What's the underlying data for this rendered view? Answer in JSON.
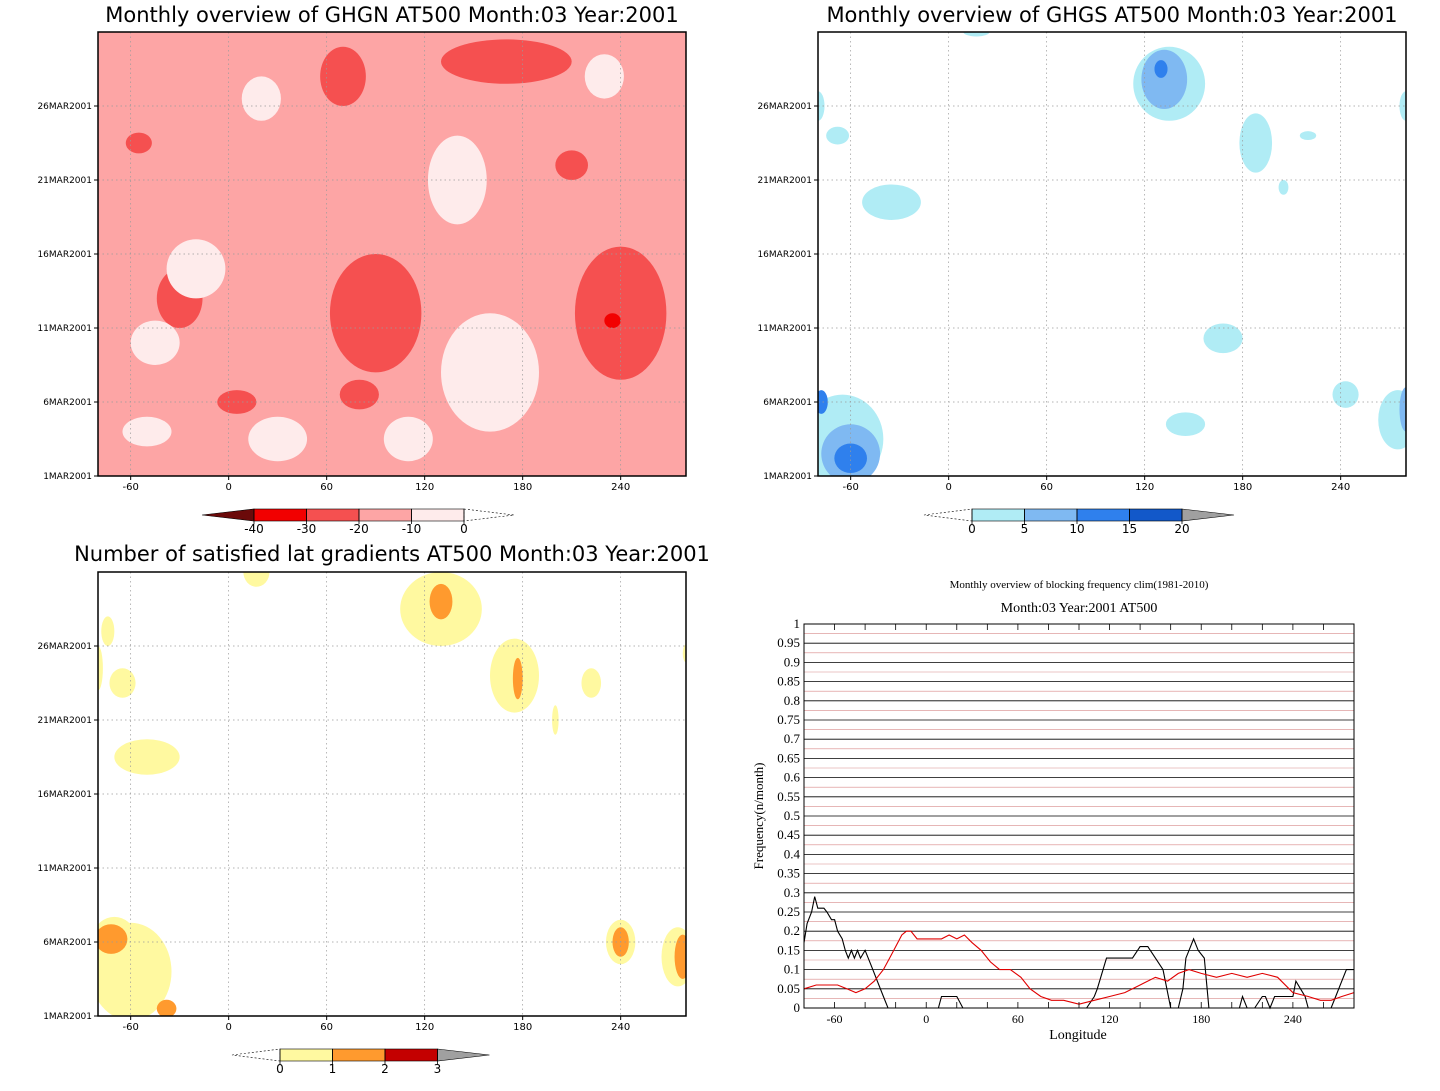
{
  "panels": [
    {
      "id": "ghgn",
      "title": "Monthly overview of GHGN AT500 Month:03 Year:2001",
      "type": "filled-contour",
      "x_ticks": [
        "-60",
        "0",
        "60",
        "120",
        "180",
        "240"
      ],
      "x_tick_values": [
        -60,
        0,
        60,
        120,
        180,
        240
      ],
      "xlim": [
        -80,
        280
      ],
      "y_ticks": [
        "1MAR2001",
        "6MAR2001",
        "11MAR2001",
        "16MAR2001",
        "21MAR2001",
        "26MAR2001"
      ],
      "y_tick_values": [
        1,
        6,
        11,
        16,
        21,
        26
      ],
      "ylim": [
        1,
        31
      ],
      "background_color": "#fda5a5",
      "colorbar": {
        "labels": [
          "-40",
          "-30",
          "-20",
          "-10",
          "0"
        ],
        "colors": [
          "#6b0a0a",
          "#f20000",
          "#f55050",
          "#fda5a5",
          "#feebeb"
        ],
        "open_end": "right"
      },
      "blobs": [
        {
          "c": "#f55050",
          "x": 90,
          "y": 12,
          "rx": 28,
          "ry": 4
        },
        {
          "c": "#f55050",
          "x": -30,
          "y": 13,
          "rx": 14,
          "ry": 2
        },
        {
          "c": "#f55050",
          "x": 240,
          "y": 12,
          "rx": 28,
          "ry": 4.5
        },
        {
          "c": "#f55050",
          "x": 70,
          "y": 28,
          "rx": 14,
          "ry": 2
        },
        {
          "c": "#f55050",
          "x": 170,
          "y": 29,
          "rx": 40,
          "ry": 1.5
        },
        {
          "c": "#f55050",
          "x": -55,
          "y": 23.5,
          "rx": 8,
          "ry": 0.7
        },
        {
          "c": "#f55050",
          "x": 210,
          "y": 22,
          "rx": 10,
          "ry": 1
        },
        {
          "c": "#f55050",
          "x": 5,
          "y": 6,
          "rx": 12,
          "ry": 0.8
        },
        {
          "c": "#f55050",
          "x": 80,
          "y": 6.5,
          "rx": 12,
          "ry": 1
        },
        {
          "c": "#f20000",
          "x": 235,
          "y": 11.5,
          "rx": 5,
          "ry": 0.5
        },
        {
          "c": "#feebeb",
          "x": 160,
          "y": 8,
          "rx": 30,
          "ry": 4
        },
        {
          "c": "#feebeb",
          "x": 140,
          "y": 21,
          "rx": 18,
          "ry": 3
        },
        {
          "c": "#feebeb",
          "x": -20,
          "y": 15,
          "rx": 18,
          "ry": 2
        },
        {
          "c": "#feebeb",
          "x": -45,
          "y": 10,
          "rx": 15,
          "ry": 1.5
        },
        {
          "c": "#feebeb",
          "x": 20,
          "y": 26.5,
          "rx": 12,
          "ry": 1.5
        },
        {
          "c": "#feebeb",
          "x": -50,
          "y": 4,
          "rx": 15,
          "ry": 1
        },
        {
          "c": "#feebeb",
          "x": 30,
          "y": 3.5,
          "rx": 18,
          "ry": 1.5
        },
        {
          "c": "#feebeb",
          "x": 110,
          "y": 3.5,
          "rx": 15,
          "ry": 1.5
        },
        {
          "c": "#feebeb",
          "x": 230,
          "y": 28,
          "rx": 12,
          "ry": 1.5
        }
      ]
    },
    {
      "id": "ghgs",
      "title": "Monthly overview of GHGS AT500 Month:03 Year:2001",
      "type": "filled-contour",
      "x_ticks": [
        "-60",
        "0",
        "60",
        "120",
        "180",
        "240"
      ],
      "x_tick_values": [
        -60,
        0,
        60,
        120,
        180,
        240
      ],
      "xlim": [
        -80,
        280
      ],
      "y_ticks": [
        "1MAR2001",
        "6MAR2001",
        "11MAR2001",
        "16MAR2001",
        "21MAR2001",
        "26MAR2001"
      ],
      "y_tick_values": [
        1,
        6,
        11,
        16,
        21,
        26
      ],
      "ylim": [
        1,
        31
      ],
      "background_color": "#ffffff",
      "colorbar": {
        "labels": [
          "0",
          "5",
          "10",
          "15",
          "20"
        ],
        "colors": [
          "#b0ecf5",
          "#7fb9f2",
          "#2f80ed",
          "#1258c9",
          "#a0a0a0"
        ],
        "open_end": "left"
      },
      "blobs": [
        {
          "c": "#b0ecf5",
          "x": 135,
          "y": 27.5,
          "rx": 22,
          "ry": 2.5
        },
        {
          "c": "#7fb9f2",
          "x": 132,
          "y": 27.8,
          "rx": 14,
          "ry": 2
        },
        {
          "c": "#2f80ed",
          "x": 130,
          "y": 28.5,
          "rx": 4,
          "ry": 0.6
        },
        {
          "c": "#b0ecf5",
          "x": 188,
          "y": 23.5,
          "rx": 10,
          "ry": 2
        },
        {
          "c": "#b0ecf5",
          "x": -35,
          "y": 19.5,
          "rx": 18,
          "ry": 1.2
        },
        {
          "c": "#b0ecf5",
          "x": -68,
          "y": 24,
          "rx": 7,
          "ry": 0.6
        },
        {
          "c": "#b0ecf5",
          "x": 168,
          "y": 10.3,
          "rx": 12,
          "ry": 1
        },
        {
          "c": "#b0ecf5",
          "x": -65,
          "y": 3.5,
          "rx": 25,
          "ry": 3
        },
        {
          "c": "#7fb9f2",
          "x": -60,
          "y": 2.5,
          "rx": 18,
          "ry": 2
        },
        {
          "c": "#2f80ed",
          "x": -60,
          "y": 2.2,
          "rx": 10,
          "ry": 1
        },
        {
          "c": "#2f80ed",
          "x": -78,
          "y": 6,
          "rx": 4,
          "ry": 0.8
        },
        {
          "c": "#b0ecf5",
          "x": 145,
          "y": 4.5,
          "rx": 12,
          "ry": 0.8
        },
        {
          "c": "#b0ecf5",
          "x": 243,
          "y": 6.5,
          "rx": 8,
          "ry": 0.9
        },
        {
          "c": "#b0ecf5",
          "x": 275,
          "y": 4.8,
          "rx": 12,
          "ry": 2
        },
        {
          "c": "#7fb9f2",
          "x": 280,
          "y": 5.5,
          "rx": 4,
          "ry": 1.5
        },
        {
          "c": "#b0ecf5",
          "x": 17,
          "y": 31,
          "rx": 8,
          "ry": 0.3
        },
        {
          "c": "#b0ecf5",
          "x": -80,
          "y": 26,
          "rx": 4,
          "ry": 1
        },
        {
          "c": "#b0ecf5",
          "x": 280,
          "y": 26,
          "rx": 4,
          "ry": 1
        },
        {
          "c": "#b0ecf5",
          "x": 220,
          "y": 24,
          "rx": 5,
          "ry": 0.3
        },
        {
          "c": "#b0ecf5",
          "x": 205,
          "y": 20.5,
          "rx": 3,
          "ry": 0.5
        }
      ]
    },
    {
      "id": "latgrad",
      "title": "Number of satisfied lat gradients AT500 Month:03 Year:2001",
      "type": "filled-contour",
      "x_ticks": [
        "-60",
        "0",
        "60",
        "120",
        "180",
        "240"
      ],
      "x_tick_values": [
        -60,
        0,
        60,
        120,
        180,
        240
      ],
      "xlim": [
        -80,
        280
      ],
      "y_ticks": [
        "1MAR2001",
        "6MAR2001",
        "11MAR2001",
        "16MAR2001",
        "21MAR2001",
        "26MAR2001"
      ],
      "y_tick_values": [
        1,
        6,
        11,
        16,
        21,
        26
      ],
      "ylim": [
        1,
        31
      ],
      "background_color": "#ffffff",
      "colorbar": {
        "labels": [
          "0",
          "1",
          "2",
          "3"
        ],
        "colors": [
          "#fff9a0",
          "#ff9a2e",
          "#c40000",
          "#a0a0a0"
        ],
        "open_end": "left"
      },
      "blobs": [
        {
          "c": "#fff9a0",
          "x": 17,
          "y": 31,
          "rx": 8,
          "ry": 1
        },
        {
          "c": "#fff9a0",
          "x": 130,
          "y": 28.5,
          "rx": 25,
          "ry": 2.5
        },
        {
          "c": "#ff9a2e",
          "x": 130,
          "y": 29,
          "rx": 7,
          "ry": 1.2
        },
        {
          "c": "#fff9a0",
          "x": 175,
          "y": 24,
          "rx": 15,
          "ry": 2.5
        },
        {
          "c": "#ff9a2e",
          "x": 177,
          "y": 23.8,
          "rx": 3,
          "ry": 1.4
        },
        {
          "c": "#fff9a0",
          "x": 222,
          "y": 23.5,
          "rx": 6,
          "ry": 1
        },
        {
          "c": "#fff9a0",
          "x": -65,
          "y": 23.5,
          "rx": 8,
          "ry": 1
        },
        {
          "c": "#fff9a0",
          "x": -80,
          "y": 24.5,
          "rx": 3,
          "ry": 1.5
        },
        {
          "c": "#fff9a0",
          "x": -74,
          "y": 27,
          "rx": 4,
          "ry": 1
        },
        {
          "c": "#fff9a0",
          "x": -50,
          "y": 18.5,
          "rx": 20,
          "ry": 1.2
        },
        {
          "c": "#fff9a0",
          "x": 200,
          "y": 21,
          "rx": 2,
          "ry": 1
        },
        {
          "c": "#fff9a0",
          "x": -60,
          "y": 4,
          "rx": 25,
          "ry": 3.3
        },
        {
          "c": "#fff9a0",
          "x": -70,
          "y": 6.5,
          "rx": 12,
          "ry": 1.2
        },
        {
          "c": "#ff9a2e",
          "x": -72,
          "y": 6.2,
          "rx": 10,
          "ry": 1
        },
        {
          "c": "#ff9a2e",
          "x": -38,
          "y": 1.5,
          "rx": 6,
          "ry": 0.6
        },
        {
          "c": "#fff9a0",
          "x": 240,
          "y": 6,
          "rx": 9,
          "ry": 1.5
        },
        {
          "c": "#ff9a2e",
          "x": 240,
          "y": 6,
          "rx": 5,
          "ry": 1
        },
        {
          "c": "#fff9a0",
          "x": 275,
          "y": 5,
          "rx": 10,
          "ry": 2
        },
        {
          "c": "#ff9a2e",
          "x": 278,
          "y": 5,
          "rx": 5,
          "ry": 1.5
        },
        {
          "c": "#fff9a0",
          "x": 280,
          "y": 25.5,
          "rx": 2,
          "ry": 0.6
        }
      ]
    }
  ],
  "chart_data": {
    "type": "line",
    "title": "Monthly overview of blocking frequency clim(1981-2010)",
    "subtitle": "Month:03 Year:2001  AT500",
    "xlabel": "Longitude",
    "ylabel": "Frequency(n/month)",
    "xlim": [
      -80,
      280
    ],
    "ylim": [
      0,
      1
    ],
    "x_ticks": [
      "-60",
      "0",
      "60",
      "120",
      "180",
      "240"
    ],
    "x_tick_values": [
      -60,
      0,
      60,
      120,
      180,
      240
    ],
    "y_ticks": [
      "0",
      "0.05",
      "0.1",
      "0.15",
      "0.2",
      "0.25",
      "0.3",
      "0.35",
      "0.4",
      "0.45",
      "0.5",
      "0.55",
      "0.6",
      "0.65",
      "0.7",
      "0.75",
      "0.8",
      "0.85",
      "0.9",
      "0.95",
      "1"
    ],
    "grid": true,
    "series": [
      {
        "color": "#000000",
        "x": [
          -80,
          -78,
          -75,
          -73,
          -71,
          -69,
          -67,
          -65,
          -62,
          -60,
          -58,
          -55,
          -53,
          -51,
          -49,
          -47,
          -45,
          -43,
          -40,
          -38,
          -35,
          -32,
          -28,
          -25,
          -20,
          -10,
          0,
          8,
          10,
          12,
          18,
          20,
          24,
          28,
          35,
          60,
          90,
          105,
          110,
          112,
          118,
          122,
          125,
          128,
          130,
          135,
          140,
          145,
          150,
          155,
          160,
          165,
          168,
          170,
          172,
          175,
          178,
          182,
          185,
          190,
          200,
          205,
          207,
          210,
          215,
          220,
          222,
          225,
          228,
          232,
          240,
          242,
          245,
          248,
          250,
          255,
          265,
          268,
          272,
          275,
          280
        ],
        "y": [
          0.17,
          0.22,
          0.25,
          0.29,
          0.26,
          0.26,
          0.26,
          0.25,
          0.23,
          0.23,
          0.2,
          0.18,
          0.15,
          0.13,
          0.15,
          0.13,
          0.15,
          0.13,
          0.15,
          0.13,
          0.1,
          0.07,
          0.03,
          0,
          0,
          0,
          0,
          0,
          0.03,
          0.03,
          0.03,
          0.03,
          0,
          0,
          0,
          0,
          0,
          0,
          0.03,
          0.05,
          0.13,
          0.13,
          0.13,
          0.13,
          0.13,
          0.13,
          0.16,
          0.16,
          0.13,
          0.1,
          0,
          0,
          0.05,
          0.13,
          0.15,
          0.18,
          0.15,
          0.13,
          0,
          0,
          0,
          0,
          0.03,
          0,
          0,
          0.03,
          0.03,
          0,
          0.03,
          0.03,
          0.03,
          0.07,
          0.05,
          0.03,
          0,
          0,
          0,
          0.03,
          0.07,
          0.1,
          0.1
        ]
      },
      {
        "color": "#e00000",
        "x": [
          -80,
          -72,
          -65,
          -58,
          -52,
          -46,
          -40,
          -34,
          -28,
          -24,
          -20,
          -16,
          -13,
          -10,
          -6,
          0,
          5,
          10,
          15,
          20,
          25,
          30,
          36,
          42,
          48,
          55,
          62,
          68,
          75,
          82,
          90,
          100,
          110,
          120,
          130,
          140,
          150,
          158,
          165,
          172,
          180,
          190,
          200,
          210,
          220,
          230,
          240,
          250,
          258,
          265,
          272,
          280
        ],
        "y": [
          0.05,
          0.06,
          0.06,
          0.06,
          0.05,
          0.04,
          0.05,
          0.07,
          0.1,
          0.13,
          0.16,
          0.19,
          0.2,
          0.2,
          0.18,
          0.18,
          0.18,
          0.18,
          0.19,
          0.18,
          0.19,
          0.17,
          0.15,
          0.12,
          0.1,
          0.1,
          0.08,
          0.05,
          0.03,
          0.02,
          0.02,
          0.01,
          0.02,
          0.03,
          0.04,
          0.06,
          0.08,
          0.07,
          0.09,
          0.1,
          0.09,
          0.08,
          0.09,
          0.08,
          0.09,
          0.08,
          0.04,
          0.03,
          0.02,
          0.02,
          0.03,
          0.04
        ]
      }
    ]
  }
}
